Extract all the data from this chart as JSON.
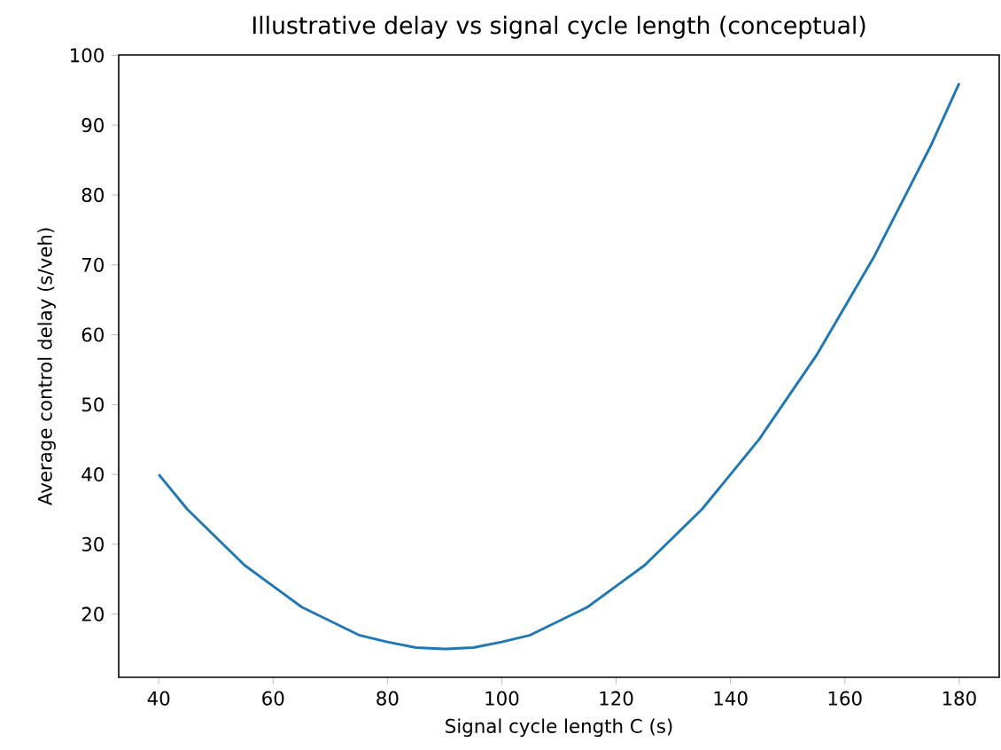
{
  "chart_data": {
    "type": "line",
    "title": "Illustrative delay vs signal cycle length (conceptual)",
    "xlabel": "Signal cycle length C (s)",
    "ylabel": "Average control delay (s/veh)",
    "x": [
      40,
      45,
      50,
      55,
      60,
      65,
      70,
      75,
      80,
      85,
      90,
      95,
      100,
      105,
      110,
      115,
      120,
      125,
      130,
      135,
      140,
      145,
      150,
      155,
      160,
      165,
      170,
      175,
      180
    ],
    "series": [
      {
        "color": "#1f77b4",
        "values": [
          40,
          35,
          31,
          27,
          24,
          21,
          19,
          17,
          16,
          15.2,
          15,
          15.2,
          16,
          17,
          19,
          21,
          24,
          27,
          31,
          35,
          40,
          45,
          51,
          57,
          64,
          71,
          79,
          87,
          96
        ]
      }
    ],
    "xlim": [
      33,
      187
    ],
    "ylim": [
      10.95,
      100.05
    ],
    "xticks": [
      40,
      60,
      80,
      100,
      120,
      140,
      160,
      180
    ],
    "yticks": [
      20,
      30,
      40,
      50,
      60,
      70,
      80,
      90,
      100
    ],
    "marker": "none",
    "line_style": "solid"
  }
}
